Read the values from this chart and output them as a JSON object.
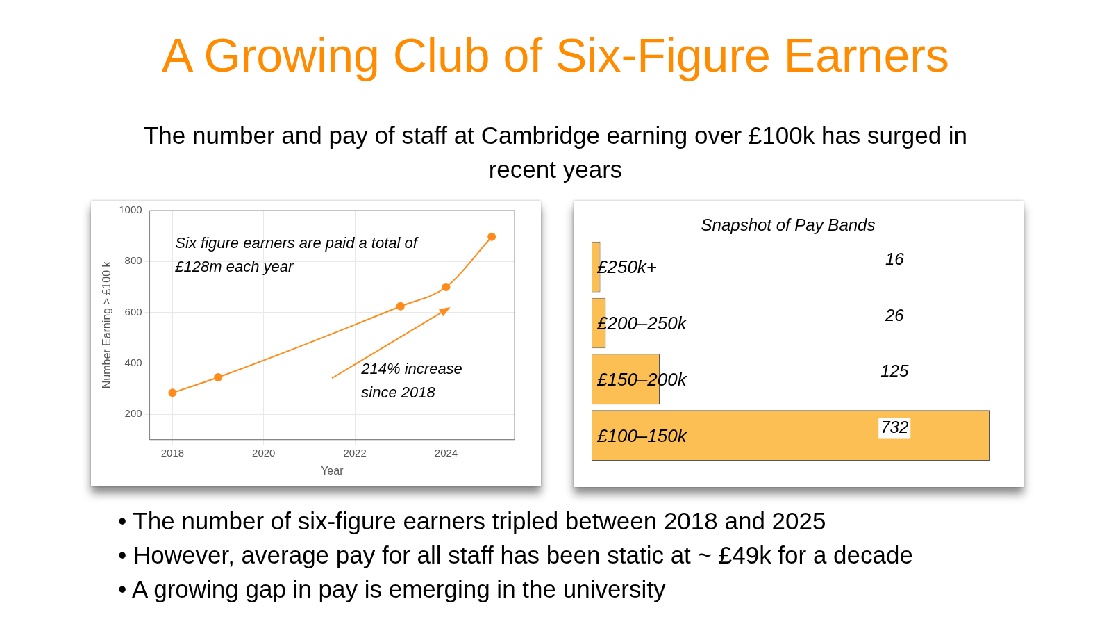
{
  "chart_data": [
    {
      "type": "other",
      "title": "A Growing Club of Six-Figure Earners",
      "subtitle": "The number and pay of staff at Cambridge earning over £100k has surged in recent years",
      "annotations": [
        "• The number of six-figure earners tripled between 2018 and 2025",
        "• However, average pay for all staff has been static at ~ £49k for a decade",
        "• A growing gap in pay is emerging in the university"
      ]
    },
    {
      "type": "line",
      "xlabel": "Year",
      "ylabel": "Number Earning > £100 k",
      "x": [
        2018,
        2019,
        2023,
        2024,
        2025
      ],
      "series": [
        {
          "color": "#ff8c1a",
          "values": [
            284,
            345,
            624,
            700,
            897
          ]
        }
      ],
      "xlim": [
        2017.5,
        2025.5
      ],
      "xticks": [
        2018,
        2020,
        2022,
        2024
      ],
      "ylim": [
        100,
        1000
      ],
      "yticks": [
        200,
        400,
        600,
        800,
        1000
      ],
      "grid": true,
      "legend": false,
      "marker": "circle",
      "line_style": "solid",
      "annotations": [
        "Six figure earners are paid a total of £128m each year",
        "214% increase since 2018"
      ]
    },
    {
      "type": "bar",
      "orientation": "horizontal",
      "title": "Snapshot of Pay Bands",
      "categories": [
        "£250k+",
        "£200–250k",
        "£150–200k",
        "£100–150k"
      ],
      "values": [
        16,
        26,
        125,
        732
      ],
      "color": "#fbbf53",
      "data_labels": true,
      "legend": false,
      "grid": false
    }
  ]
}
